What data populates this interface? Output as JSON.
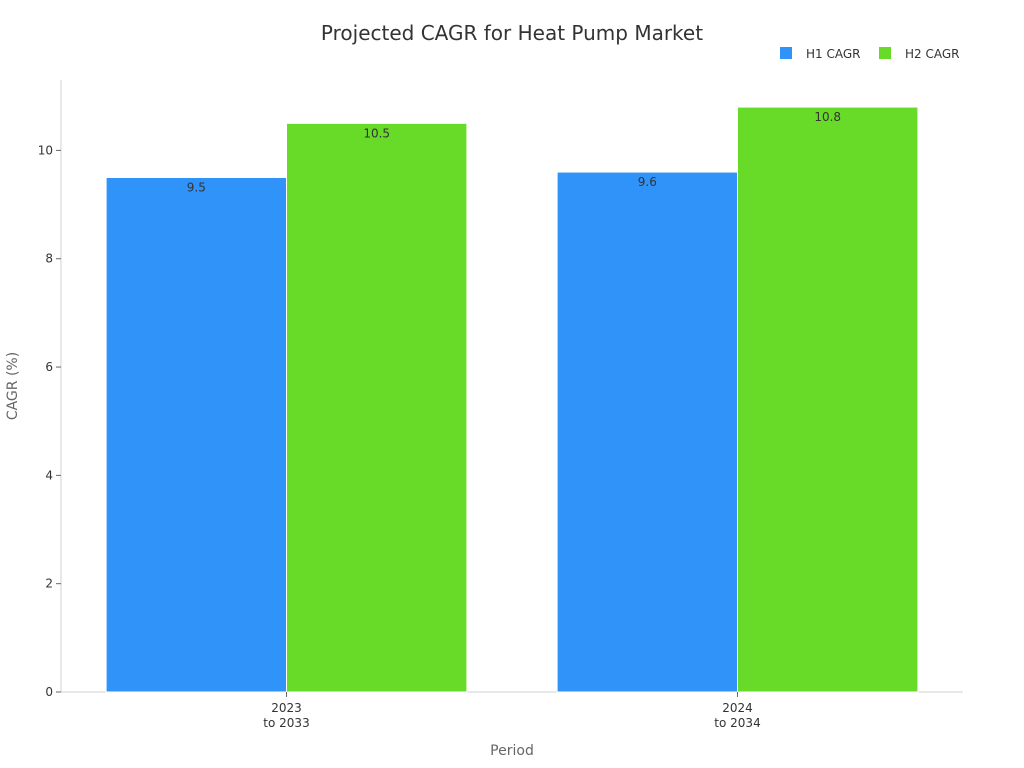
{
  "chart_data": {
    "type": "bar",
    "title": "Projected CAGR for Heat Pump Market",
    "xlabel": "Period",
    "ylabel": "CAGR (%)",
    "categories": [
      [
        "2023",
        "to 2033"
      ],
      [
        "2024",
        "to 2034"
      ]
    ],
    "series": [
      {
        "name": "H1 CAGR",
        "color": "#3093f9",
        "values": [
          9.5,
          9.6
        ]
      },
      {
        "name": "H2 CAGR",
        "color": "#68db28",
        "values": [
          10.5,
          10.8
        ]
      }
    ],
    "ylim": [
      0,
      11.3
    ],
    "yticks": [
      0,
      2,
      4,
      6,
      8,
      10
    ],
    "grid": false,
    "legend_position": "top-right"
  }
}
